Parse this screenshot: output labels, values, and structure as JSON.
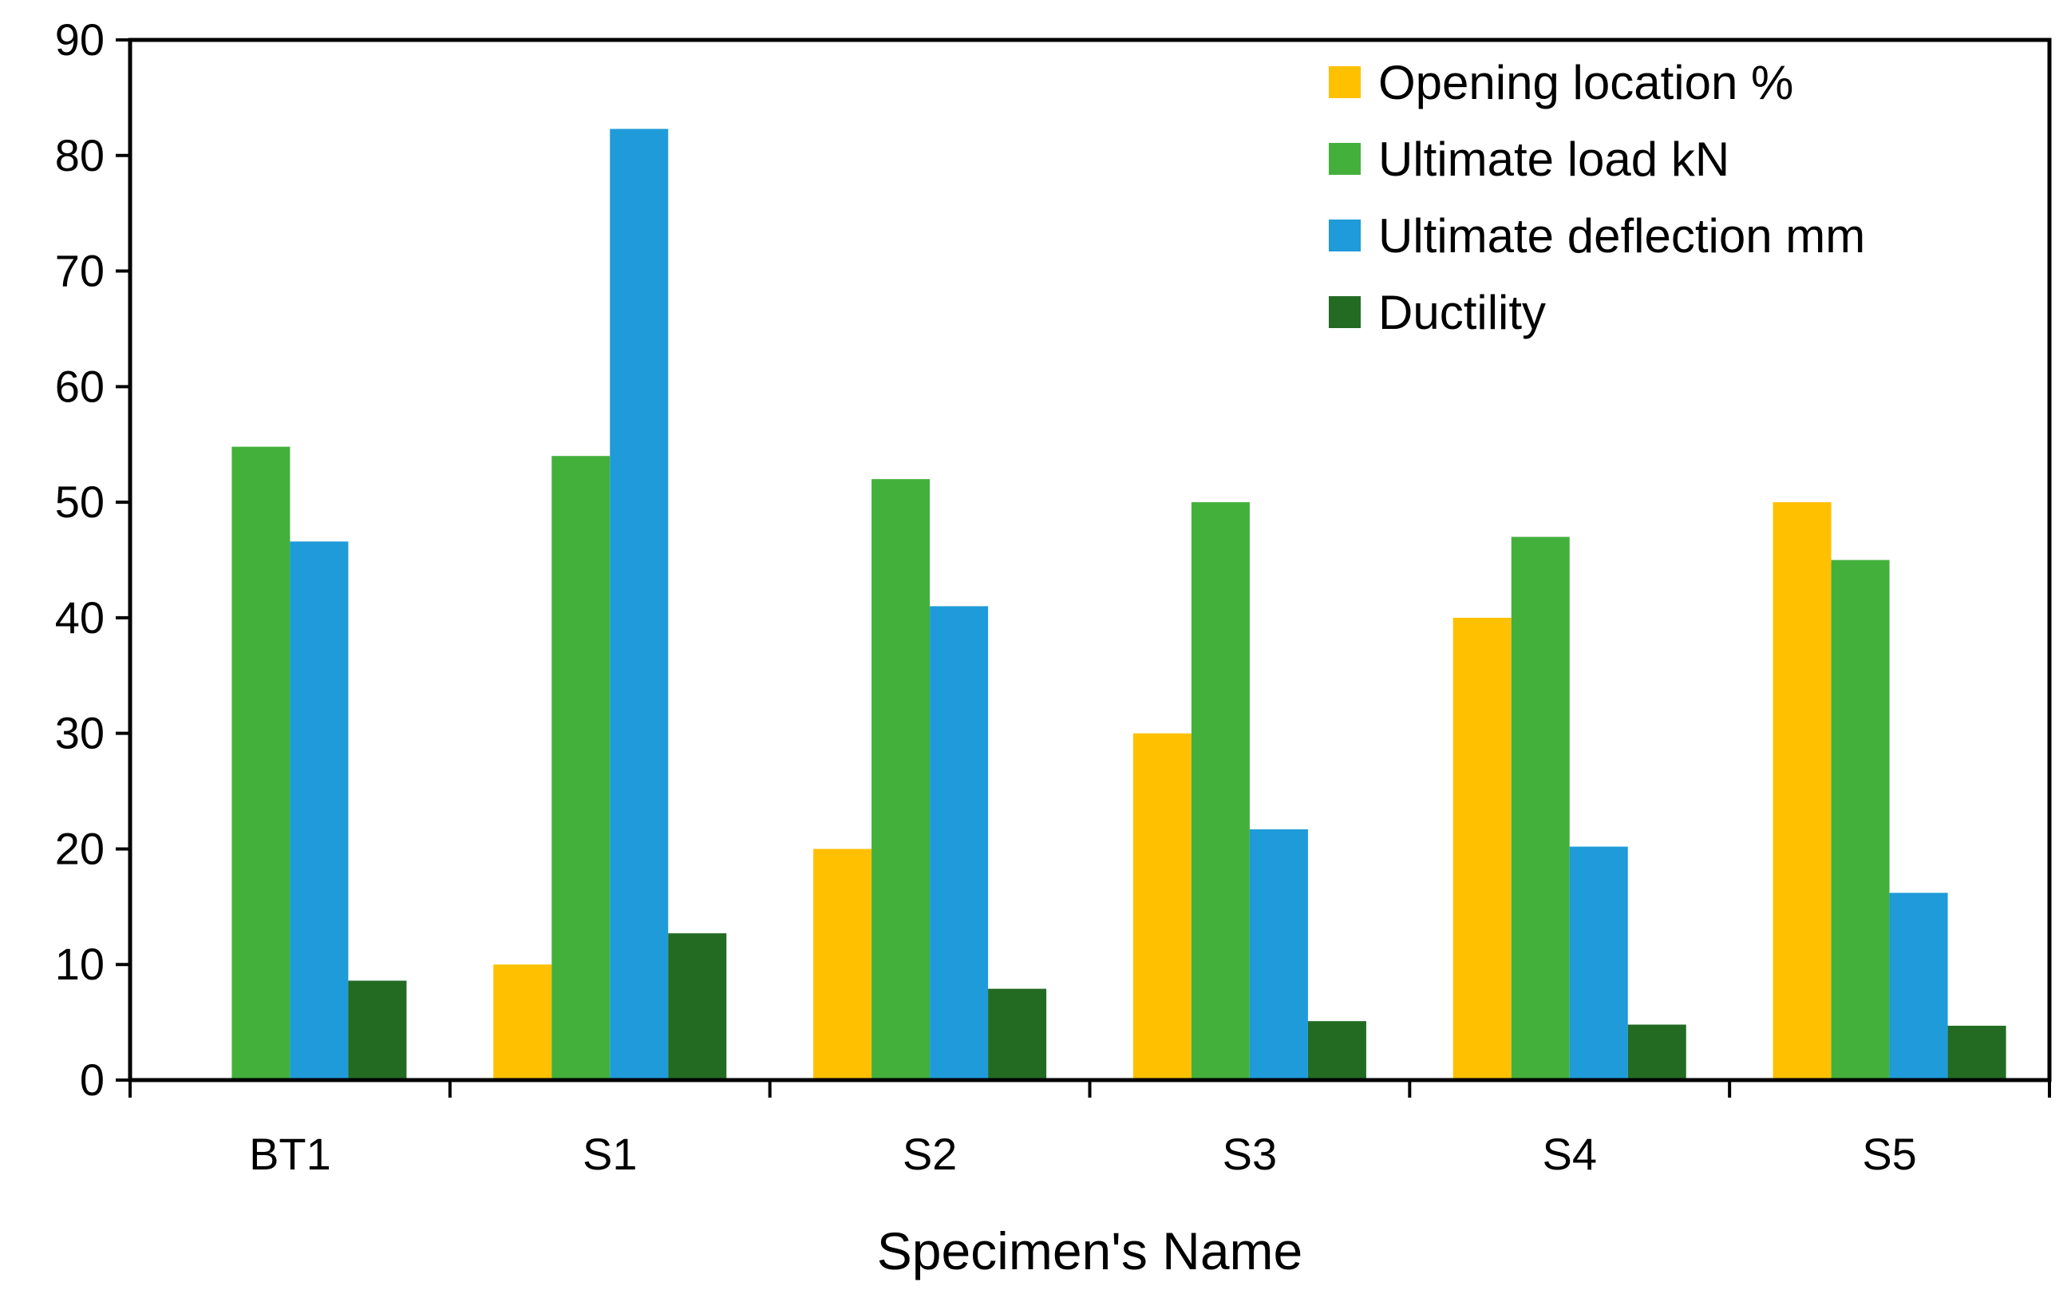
{
  "chart_data": {
    "type": "bar",
    "title": "",
    "xlabel": "Specimen's Name",
    "ylabel": "",
    "ylim": [
      0,
      90
    ],
    "yticks": [
      0,
      10,
      20,
      30,
      40,
      50,
      60,
      70,
      80,
      90
    ],
    "yticks_labels": [
      "0",
      "10",
      "20",
      "30",
      "40",
      "50",
      "60",
      "70",
      "80",
      "90"
    ],
    "categories": [
      "BT1",
      "S1",
      "S2",
      "S3",
      "S4",
      "S5"
    ],
    "legend_position": "top-right",
    "grid": false,
    "series": [
      {
        "name": "Opening location %",
        "color": "#FFC000",
        "values": [
          0,
          10,
          20,
          30,
          40,
          50
        ]
      },
      {
        "name": "Ultimate load kN",
        "color": "#43B03C",
        "values": [
          54.8,
          54,
          52,
          50,
          47,
          45
        ]
      },
      {
        "name": "Ultimate deflection mm",
        "color": "#1F9BD9",
        "values": [
          46.6,
          82.3,
          41,
          21.7,
          20.2,
          16.2
        ]
      },
      {
        "name": "Ductility",
        "color": "#236B23",
        "values": [
          8.6,
          12.7,
          7.9,
          5.1,
          4.8,
          4.7
        ]
      }
    ]
  }
}
